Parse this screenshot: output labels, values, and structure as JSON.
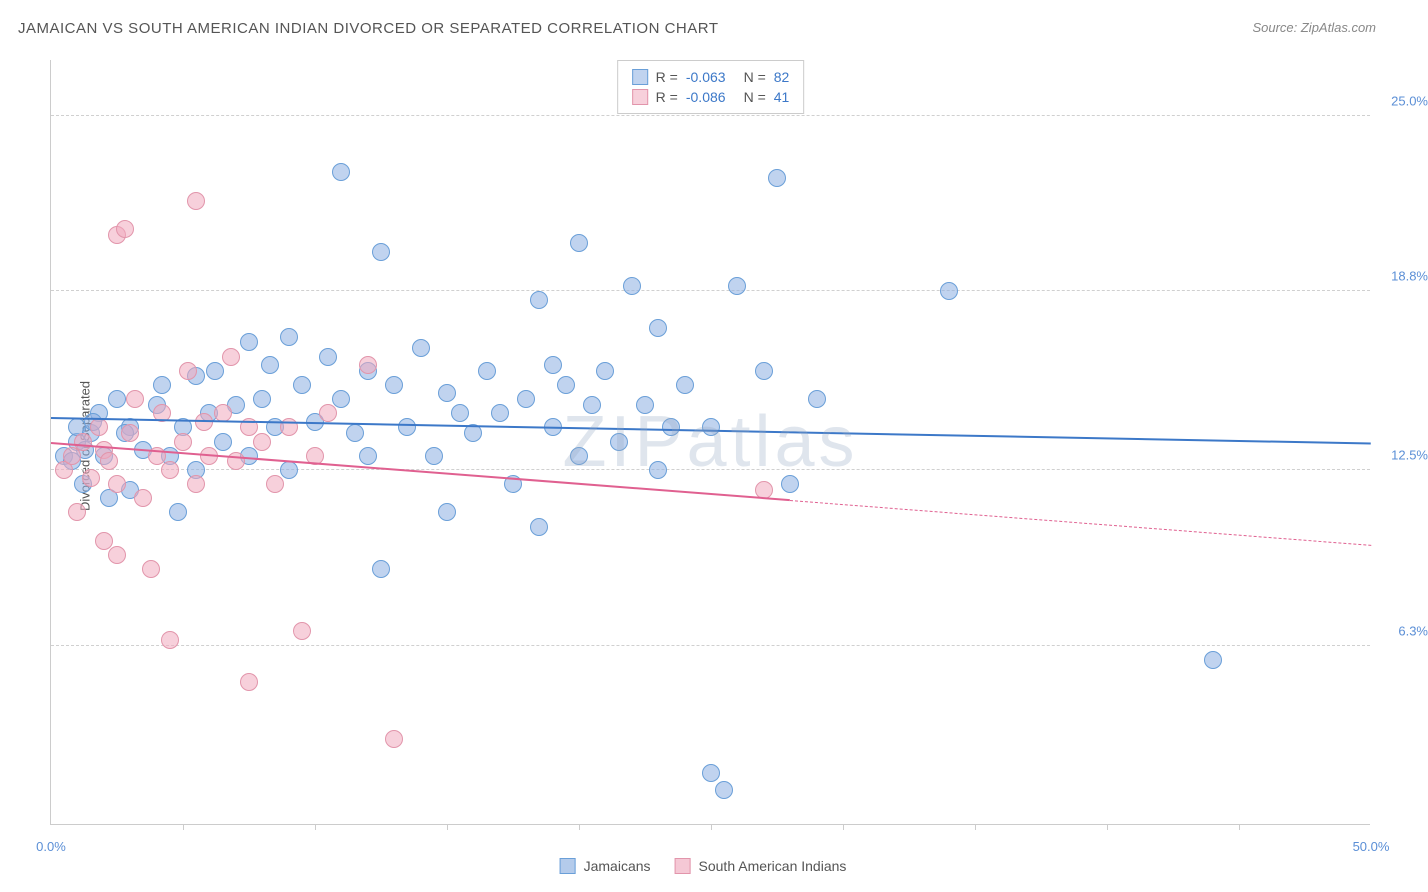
{
  "title": "JAMAICAN VS SOUTH AMERICAN INDIAN DIVORCED OR SEPARATED CORRELATION CHART",
  "source": "Source: ZipAtlas.com",
  "watermark": "ZIPatlas",
  "ylabel": "Divorced or Separated",
  "chart": {
    "type": "scatter",
    "xlim": [
      0,
      50
    ],
    "ylim": [
      0,
      27
    ],
    "background_color": "#ffffff",
    "grid_color": "#d0d0d0",
    "yticks": [
      {
        "value": 6.3,
        "label": "6.3%",
        "color": "#5b8fd6"
      },
      {
        "value": 12.5,
        "label": "12.5%",
        "color": "#5b8fd6"
      },
      {
        "value": 18.8,
        "label": "18.8%",
        "color": "#5b8fd6"
      },
      {
        "value": 25.0,
        "label": "25.0%",
        "color": "#5b8fd6"
      }
    ],
    "xticks": [
      5,
      10,
      15,
      20,
      25,
      30,
      35,
      40,
      45
    ],
    "xlabels": [
      {
        "value": 0,
        "label": "0.0%",
        "color": "#5b8fd6"
      },
      {
        "value": 50,
        "label": "50.0%",
        "color": "#5b8fd6"
      }
    ],
    "series": [
      {
        "name": "Jamaicans",
        "fill_color": "rgba(140,175,225,0.55)",
        "stroke_color": "#6a9fd8",
        "marker_size": 18,
        "r_value": "-0.063",
        "n_value": "82",
        "trend": {
          "x1": 0,
          "y1": 14.3,
          "x2": 50,
          "y2": 13.4,
          "color": "#3c78c8",
          "solid_until": 50
        },
        "points": [
          [
            0.5,
            13.0
          ],
          [
            0.8,
            12.8
          ],
          [
            1.0,
            13.5
          ],
          [
            1.2,
            12.0
          ],
          [
            1.0,
            14.0
          ],
          [
            1.5,
            13.8
          ],
          [
            1.8,
            14.5
          ],
          [
            2.0,
            13.0
          ],
          [
            2.2,
            11.5
          ],
          [
            2.5,
            15.0
          ],
          [
            3.0,
            14.0
          ],
          [
            3.0,
            11.8
          ],
          [
            3.5,
            13.2
          ],
          [
            4.0,
            14.8
          ],
          [
            4.2,
            15.5
          ],
          [
            4.5,
            13.0
          ],
          [
            4.8,
            11.0
          ],
          [
            5.0,
            14.0
          ],
          [
            5.5,
            15.8
          ],
          [
            5.5,
            12.5
          ],
          [
            6.0,
            14.5
          ],
          [
            6.2,
            16.0
          ],
          [
            6.5,
            13.5
          ],
          [
            7.0,
            14.8
          ],
          [
            7.5,
            17.0
          ],
          [
            7.5,
            13.0
          ],
          [
            8.0,
            15.0
          ],
          [
            8.3,
            16.2
          ],
          [
            8.5,
            14.0
          ],
          [
            9.0,
            17.2
          ],
          [
            9.0,
            12.5
          ],
          [
            9.5,
            15.5
          ],
          [
            10.0,
            14.2
          ],
          [
            10.5,
            16.5
          ],
          [
            11.0,
            23.0
          ],
          [
            11.0,
            15.0
          ],
          [
            11.5,
            13.8
          ],
          [
            12.0,
            16.0
          ],
          [
            12.5,
            20.2
          ],
          [
            12.0,
            13.0
          ],
          [
            12.5,
            9.0
          ],
          [
            13.0,
            15.5
          ],
          [
            13.5,
            14.0
          ],
          [
            14.0,
            16.8
          ],
          [
            14.5,
            13.0
          ],
          [
            15.0,
            15.2
          ],
          [
            15.0,
            11.0
          ],
          [
            15.5,
            14.5
          ],
          [
            16.0,
            13.8
          ],
          [
            16.5,
            16.0
          ],
          [
            17.0,
            14.5
          ],
          [
            17.5,
            12.0
          ],
          [
            18.0,
            15.0
          ],
          [
            18.5,
            18.5
          ],
          [
            18.5,
            10.5
          ],
          [
            19.0,
            14.0
          ],
          [
            19.0,
            16.2
          ],
          [
            19.5,
            15.5
          ],
          [
            20.0,
            20.5
          ],
          [
            20.0,
            13.0
          ],
          [
            20.5,
            14.8
          ],
          [
            21.0,
            16.0
          ],
          [
            21.5,
            13.5
          ],
          [
            22.0,
            19.0
          ],
          [
            22.5,
            14.8
          ],
          [
            23.0,
            17.5
          ],
          [
            23.5,
            14.0
          ],
          [
            23.0,
            12.5
          ],
          [
            24.0,
            15.5
          ],
          [
            25.0,
            14.0
          ],
          [
            25.0,
            1.8
          ],
          [
            25.5,
            1.2
          ],
          [
            26.0,
            19.0
          ],
          [
            27.0,
            16.0
          ],
          [
            27.5,
            22.8
          ],
          [
            28.0,
            12.0
          ],
          [
            29.0,
            15.0
          ],
          [
            34.0,
            18.8
          ],
          [
            44.0,
            5.8
          ],
          [
            1.3,
            13.2
          ],
          [
            1.6,
            14.2
          ],
          [
            2.8,
            13.8
          ]
        ]
      },
      {
        "name": "South American Indians",
        "fill_color": "rgba(240,170,190,0.55)",
        "stroke_color": "#e295ab",
        "marker_size": 18,
        "r_value": "-0.086",
        "n_value": "41",
        "trend": {
          "x1": 0,
          "y1": 13.4,
          "x2": 50,
          "y2": 9.8,
          "color": "#e06090",
          "solid_until": 28
        },
        "points": [
          [
            0.5,
            12.5
          ],
          [
            0.8,
            13.0
          ],
          [
            1.0,
            11.0
          ],
          [
            1.2,
            13.5
          ],
          [
            1.5,
            12.2
          ],
          [
            1.8,
            14.0
          ],
          [
            2.0,
            10.0
          ],
          [
            2.0,
            13.2
          ],
          [
            2.5,
            20.8
          ],
          [
            2.5,
            12.0
          ],
          [
            2.8,
            21.0
          ],
          [
            2.5,
            9.5
          ],
          [
            3.0,
            13.8
          ],
          [
            3.2,
            15.0
          ],
          [
            3.5,
            11.5
          ],
          [
            3.8,
            9.0
          ],
          [
            4.0,
            13.0
          ],
          [
            4.2,
            14.5
          ],
          [
            4.5,
            6.5
          ],
          [
            4.5,
            12.5
          ],
          [
            5.0,
            13.5
          ],
          [
            5.2,
            16.0
          ],
          [
            5.5,
            12.0
          ],
          [
            5.8,
            14.2
          ],
          [
            5.5,
            22.0
          ],
          [
            6.0,
            13.0
          ],
          [
            6.5,
            14.5
          ],
          [
            6.8,
            16.5
          ],
          [
            7.0,
            12.8
          ],
          [
            7.5,
            14.0
          ],
          [
            7.5,
            5.0
          ],
          [
            8.0,
            13.5
          ],
          [
            8.5,
            12.0
          ],
          [
            9.0,
            14.0
          ],
          [
            9.5,
            6.8
          ],
          [
            10.0,
            13.0
          ],
          [
            10.5,
            14.5
          ],
          [
            12.0,
            16.2
          ],
          [
            13.0,
            3.0
          ],
          [
            2.2,
            12.8
          ],
          [
            27.0,
            11.8
          ]
        ]
      }
    ],
    "legend_top": {
      "label_r": "R =",
      "label_n": "N =",
      "value_color": "#3c78c8"
    },
    "legend_bottom": {
      "items": [
        {
          "label": "Jamaicans",
          "fill": "rgba(140,175,225,0.65)",
          "stroke": "#6a9fd8"
        },
        {
          "label": "South American Indians",
          "fill": "rgba(240,170,190,0.65)",
          "stroke": "#e295ab"
        }
      ]
    }
  }
}
